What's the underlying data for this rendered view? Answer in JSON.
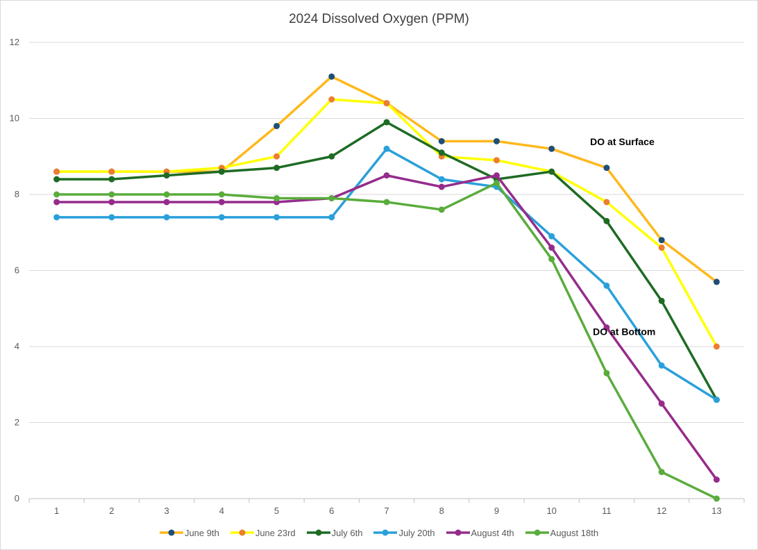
{
  "chart_data": {
    "type": "line",
    "title": "2024 Dissolved Oxygen (PPM)",
    "xlabel": "",
    "ylabel": "",
    "x": [
      1,
      2,
      3,
      4,
      5,
      6,
      7,
      8,
      9,
      10,
      11,
      12,
      13
    ],
    "x_tick_labels": [
      "1",
      "2",
      "3",
      "4",
      "5",
      "6",
      "7",
      "8",
      "9",
      "10",
      "11",
      "12",
      "13"
    ],
    "ylim": [
      0,
      12
    ],
    "y_ticks": [
      0,
      2,
      4,
      6,
      8,
      10,
      12
    ],
    "y_tick_labels": [
      "0",
      "2",
      "4",
      "6",
      "8",
      "10",
      "12"
    ],
    "grid": true,
    "legend_position": "bottom",
    "series": [
      {
        "name": "June 9th",
        "line_color": "#ffb81c",
        "marker_color": "#1f4e79",
        "values": [
          8.6,
          8.6,
          8.6,
          8.6,
          9.8,
          11.1,
          10.4,
          9.4,
          9.4,
          9.2,
          8.7,
          6.8,
          5.7
        ]
      },
      {
        "name": "June 23rd",
        "line_color": "#ffff00",
        "marker_color": "#ed7d31",
        "values": [
          8.6,
          8.6,
          8.6,
          8.7,
          9.0,
          10.5,
          10.4,
          9.0,
          8.9,
          8.6,
          7.8,
          6.6,
          4.0
        ]
      },
      {
        "name": "July 6th",
        "line_color": "#1e6b24",
        "marker_color": "#1e6b24",
        "values": [
          8.4,
          8.4,
          8.5,
          8.6,
          8.7,
          9.0,
          9.9,
          9.1,
          8.4,
          8.6,
          7.3,
          5.2,
          2.6
        ]
      },
      {
        "name": "July 20th",
        "line_color": "#2aa0da",
        "marker_color": "#2aa0da",
        "values": [
          7.4,
          7.4,
          7.4,
          7.4,
          7.4,
          7.4,
          9.2,
          8.4,
          8.2,
          6.9,
          5.6,
          3.5,
          2.6
        ]
      },
      {
        "name": "August 4th",
        "line_color": "#952c8c",
        "marker_color": "#952c8c",
        "values": [
          7.8,
          7.8,
          7.8,
          7.8,
          7.8,
          7.9,
          8.5,
          8.2,
          8.5,
          6.6,
          4.5,
          2.5,
          0.5
        ]
      },
      {
        "name": "August 18th",
        "line_color": "#5aac3c",
        "marker_color": "#5aac3c",
        "values": [
          8.0,
          8.0,
          8.0,
          8.0,
          7.9,
          7.9,
          7.8,
          7.6,
          8.3,
          6.3,
          3.3,
          0.7,
          0.0
        ]
      }
    ],
    "annotations": [
      {
        "text": "DO at Surface",
        "x": 10.7,
        "y": 9.3
      },
      {
        "text": "DO at Bottom",
        "x": 10.75,
        "y": 4.3
      }
    ]
  }
}
